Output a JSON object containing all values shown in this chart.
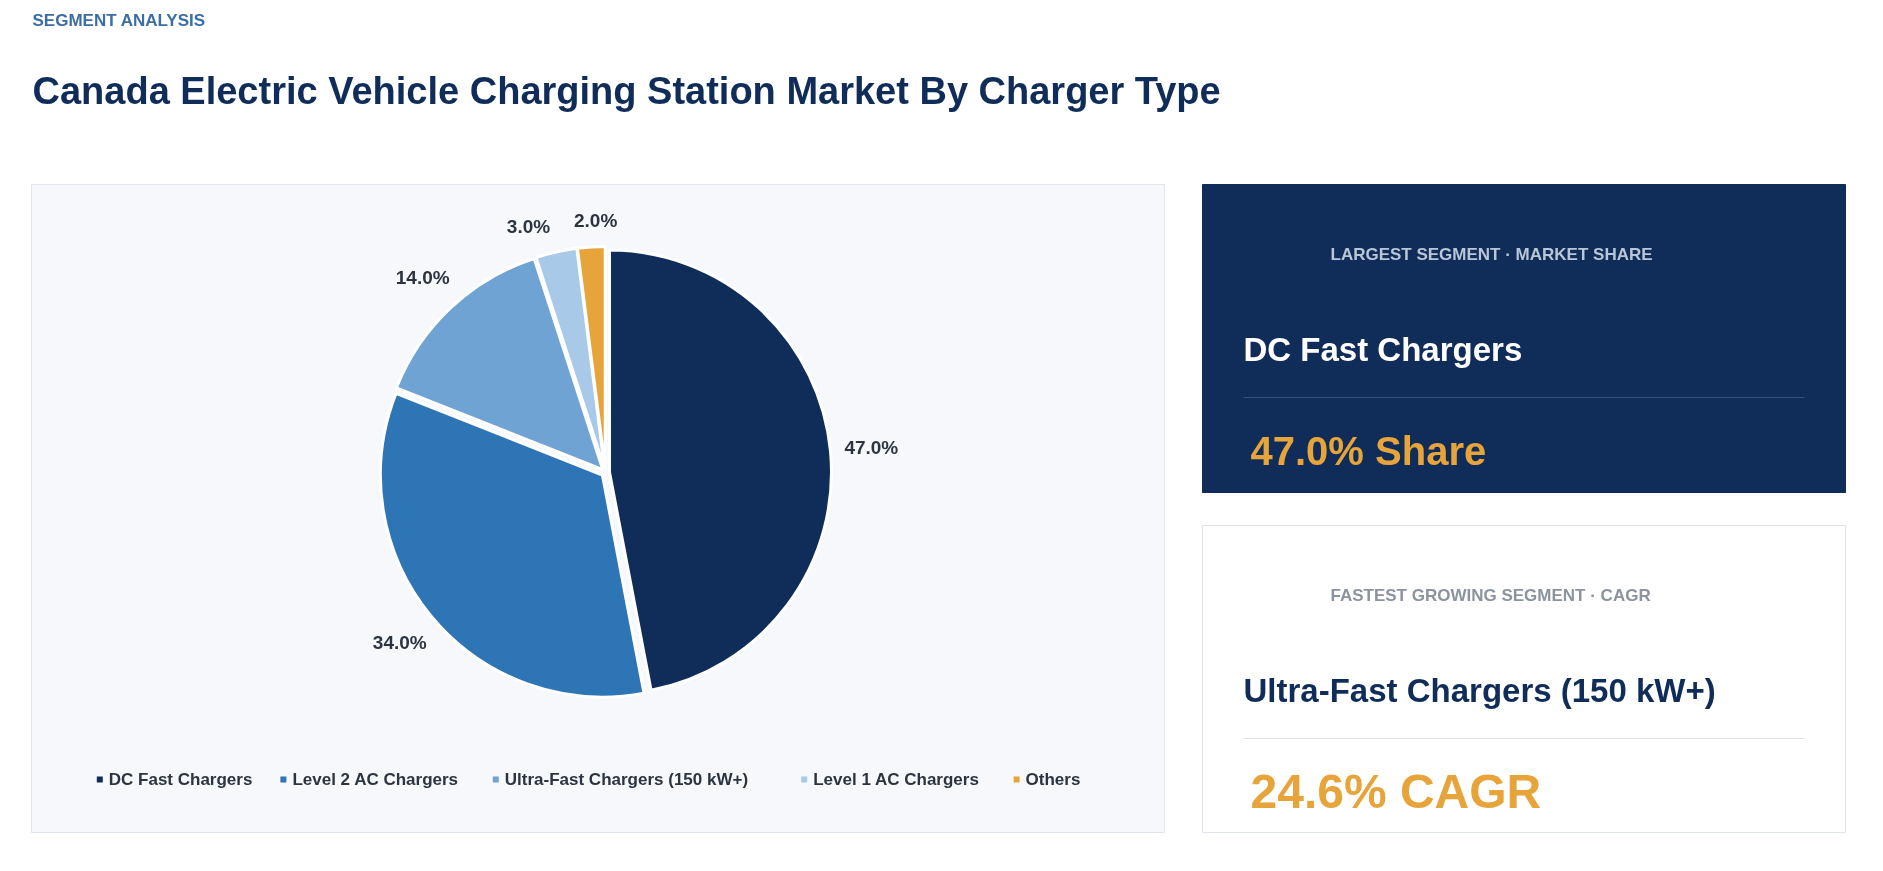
{
  "chart_data": [
    {
      "type": "pie",
      "subtitle": "SEGMENT ANALYSIS",
      "title": "Canada Electric Vehicle Charging Station Market By Charger Type",
      "categories": [
        "DC Fast Chargers",
        "Level 2 AC Chargers",
        "Ultra-Fast Chargers (150 kW+)",
        "Level 1 AC Chargers",
        "Others"
      ],
      "values": [
        47.0,
        34.0,
        14.0,
        3.0,
        2.0
      ],
      "colors": [
        "#102d5a",
        "#2e75b6",
        "#6fa3d3",
        "#a8c9e8",
        "#e7a43a"
      ],
      "value_labels": [
        "47.0%",
        "34.0%",
        "14.0%",
        "3.0%",
        "2.0%"
      ],
      "legend": "bottom"
    },
    {
      "type": "other",
      "annotations": [
        "LARGEST SEGMENT  ·  MARKET SHARE",
        "DC Fast Chargers",
        "47.0% Share"
      ]
    },
    {
      "type": "other",
      "annotations": [
        "FASTEST GROWING SEGMENT  ·  CAGR",
        "Ultra-Fast Chargers (150 kW+)",
        "24.6% CAGR"
      ]
    }
  ]
}
